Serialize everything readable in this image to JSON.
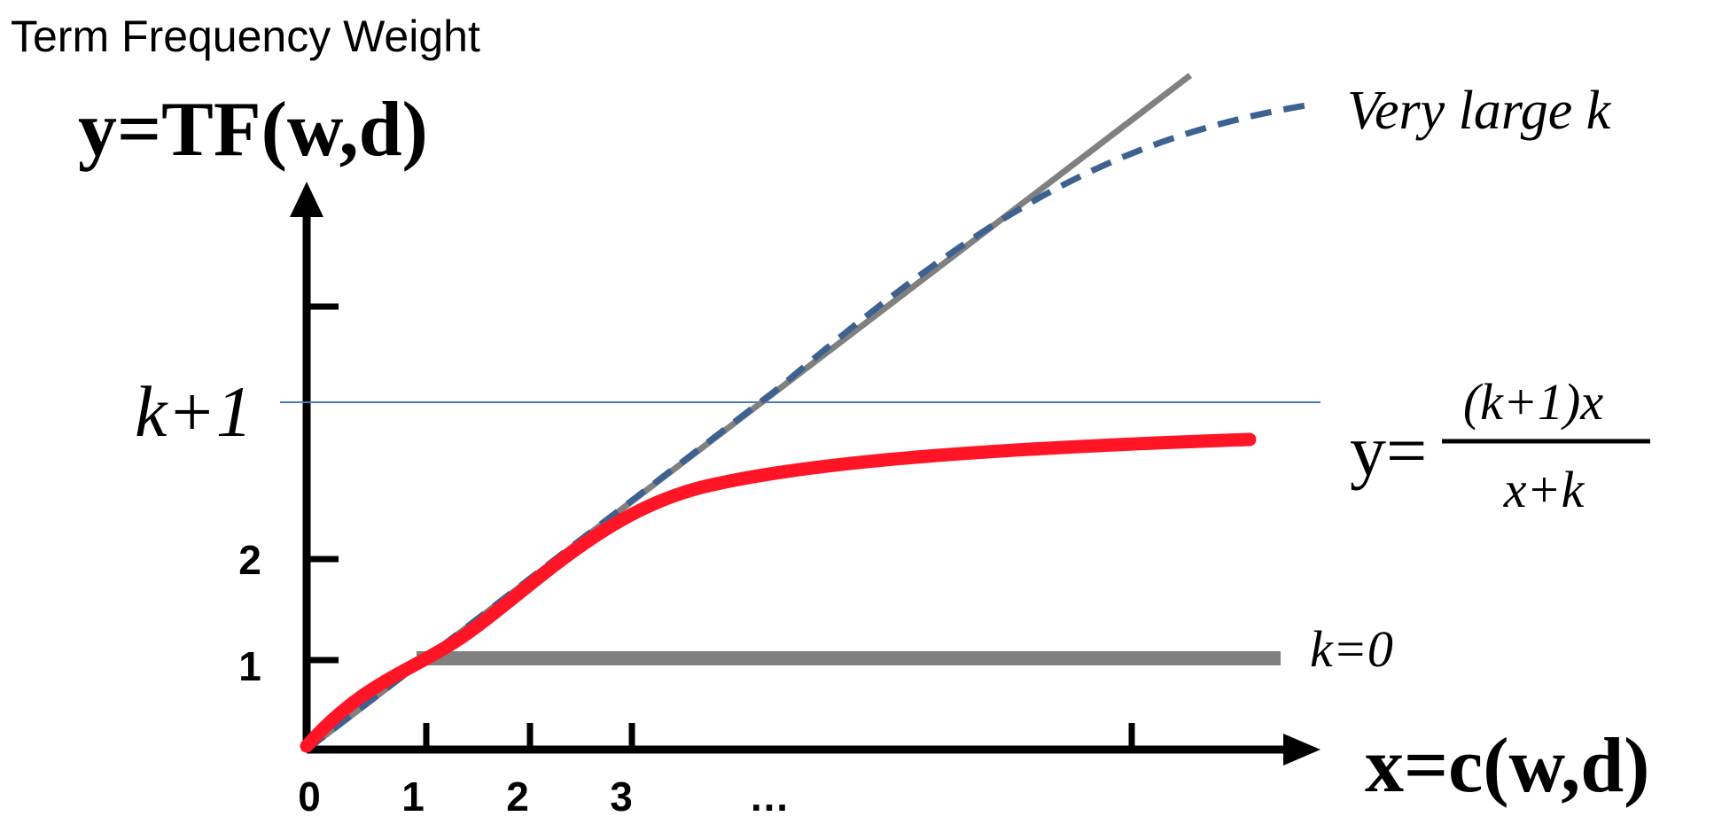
{
  "diagram": {
    "title": "Term Frequency Weight",
    "y_axis_label": "y=TF(w,d)",
    "x_axis_label": "x=c(w,d)",
    "x_tick_labels": [
      "0",
      "1",
      "2",
      "3",
      "…"
    ],
    "y_tick_labels": [
      "1",
      "2"
    ],
    "k_plus_1_label": "k+1",
    "curve_labels": {
      "very_large_k": "Very large k",
      "k_zero": "k=0"
    },
    "formula": {
      "lhs": "y=",
      "numerator": "(k+1)x",
      "denominator": "x+k"
    }
  },
  "colors": {
    "axis": "#000000",
    "identity_line": "#808080",
    "k_zero_line": "#808080",
    "bm25_curve": "#ff1525",
    "large_k_curve": "#3d6190",
    "k_plus_1_line": "#4a7ab8"
  }
}
